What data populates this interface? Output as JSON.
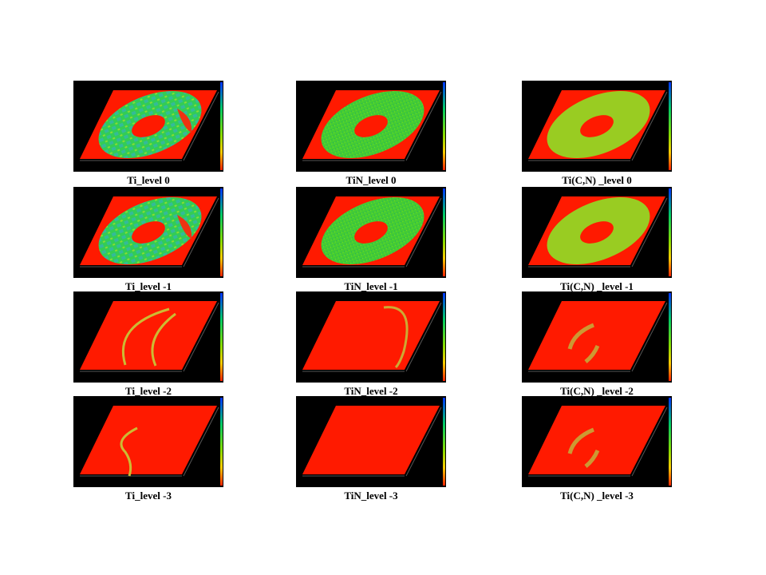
{
  "figure": {
    "rows": [
      [
        "Ti_level 0",
        "TiN_level 0",
        "Ti(C,N) _level 0"
      ],
      [
        "Ti_level -1",
        "TiN_level -1",
        "Ti(C,N) _level -1"
      ],
      [
        "Ti_level -2",
        "TiN_level -2",
        "Ti(C,N) _level -2"
      ],
      [
        "Ti_level -3",
        "TiN_level -3",
        "Ti(C,N) _level -3"
      ]
    ]
  }
}
